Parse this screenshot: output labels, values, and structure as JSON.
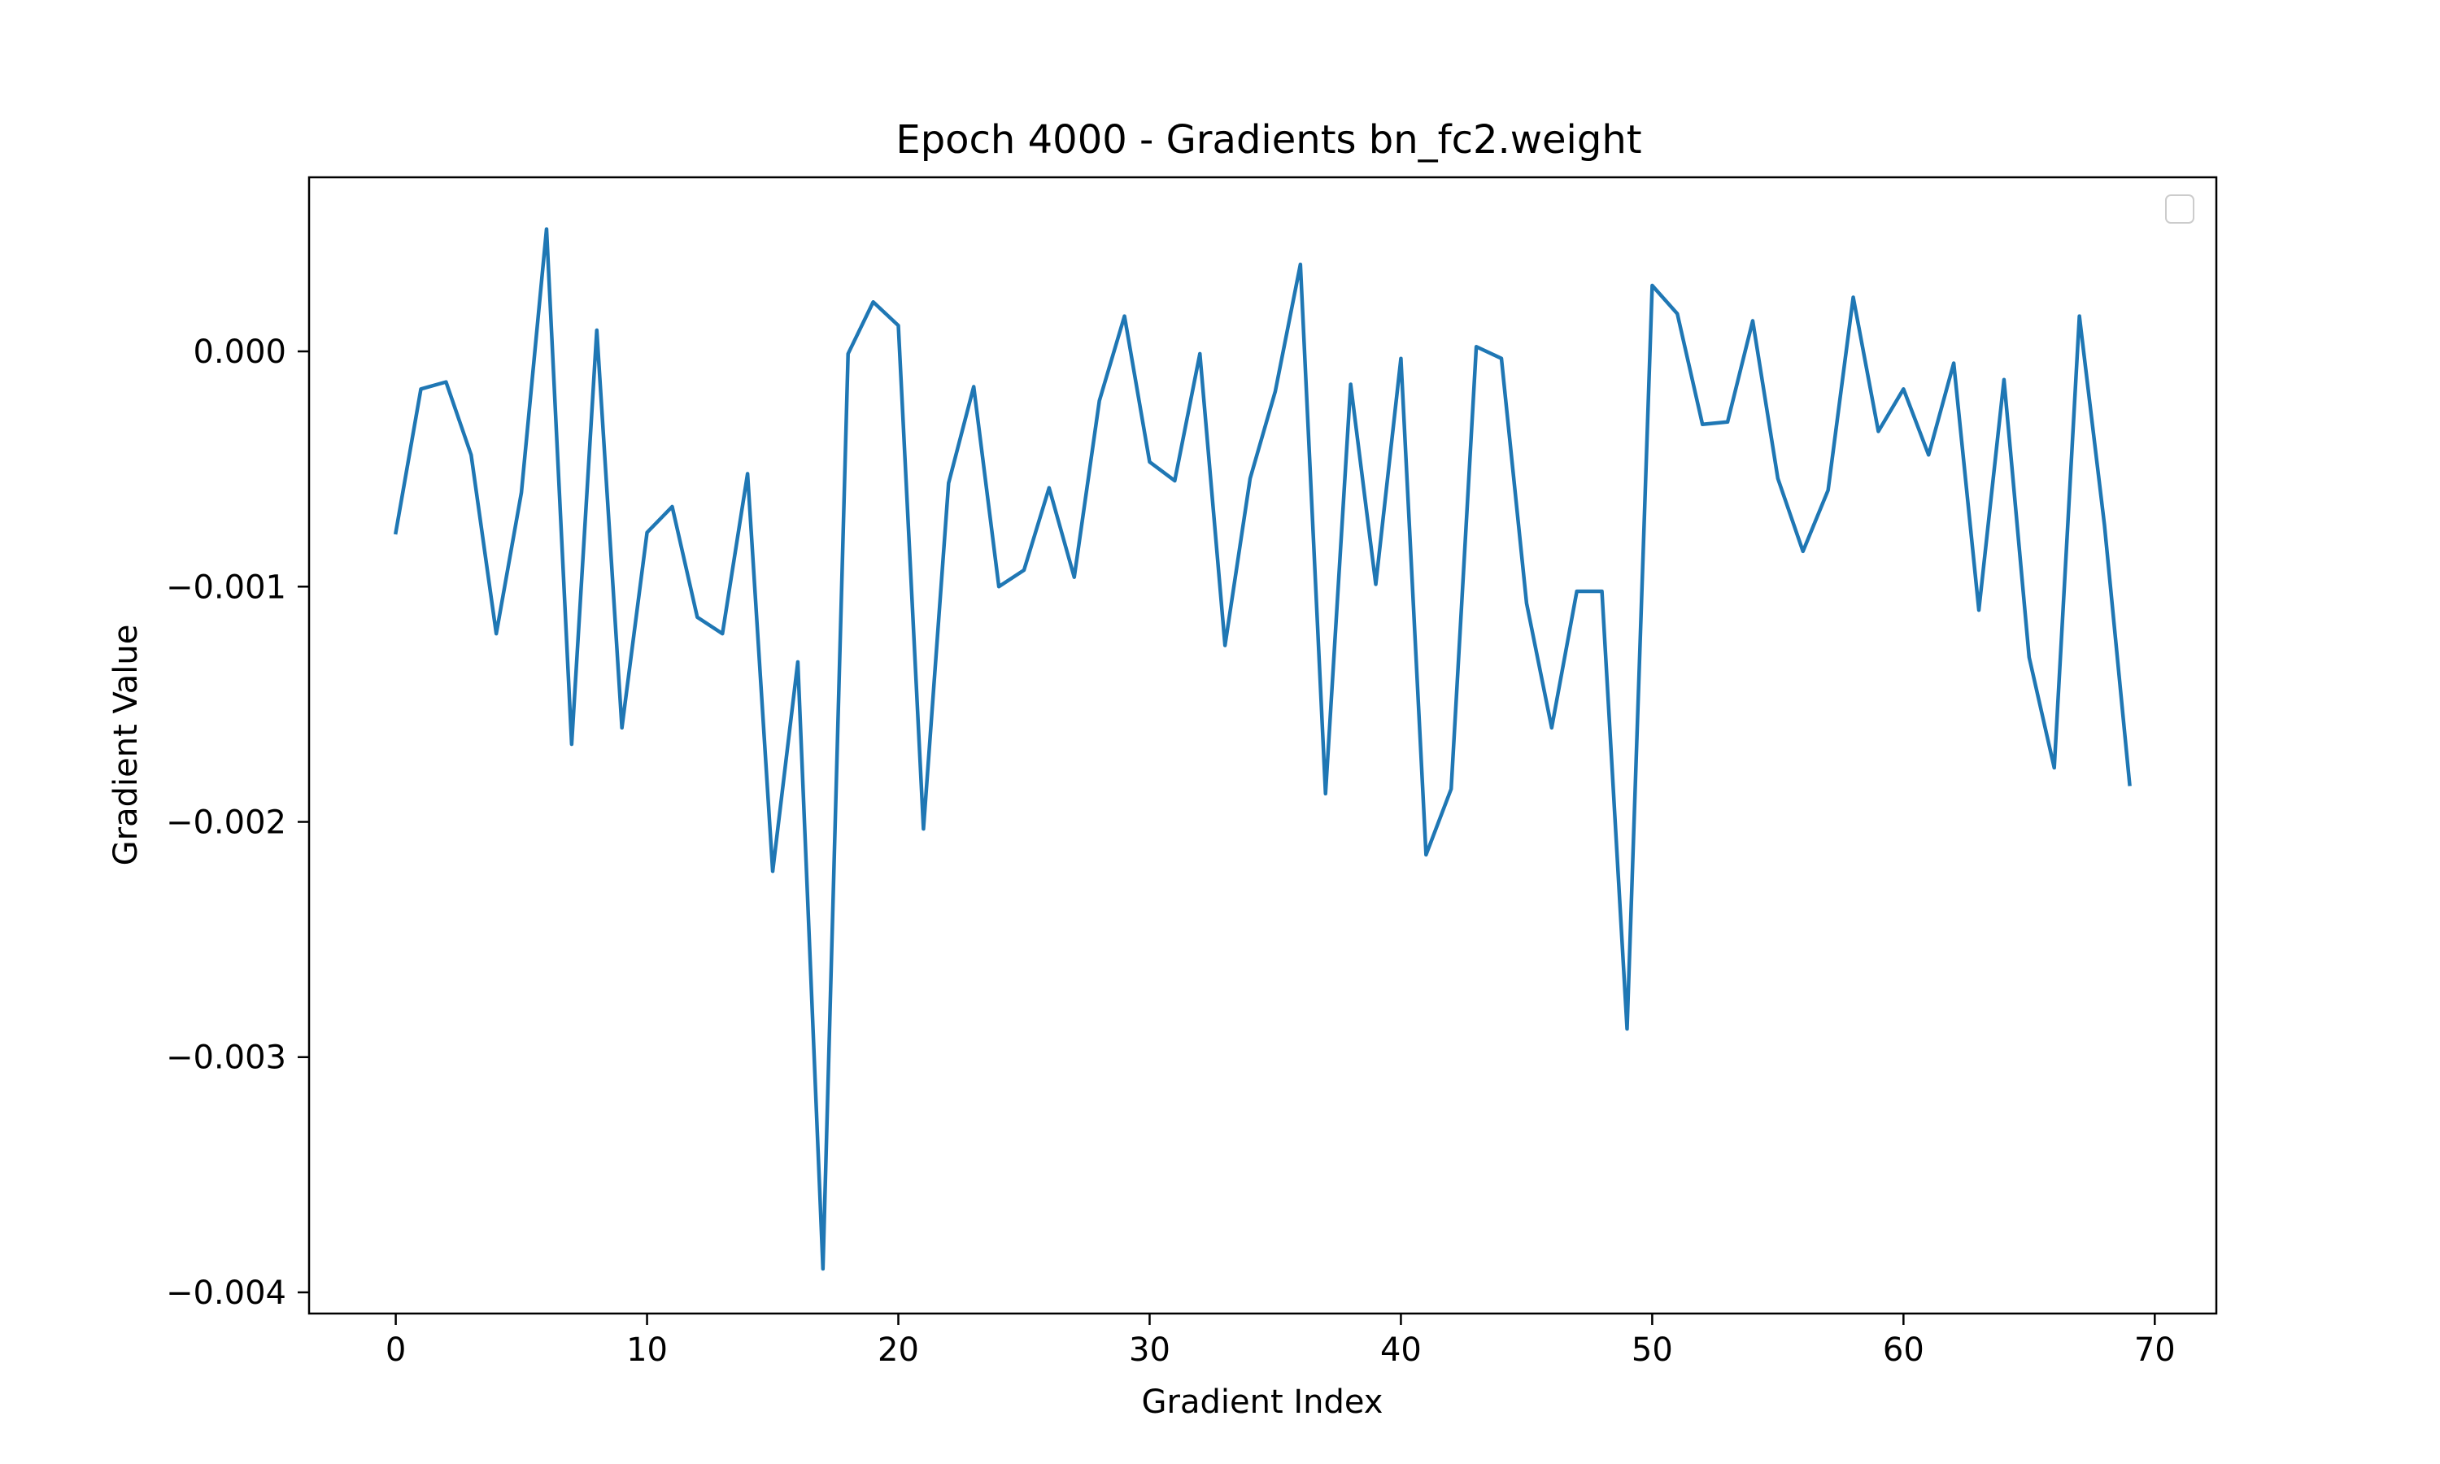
{
  "chart_data": {
    "type": "line",
    "title": "Epoch 4000 - Gradients bn_fc2.weight",
    "xlabel": "Gradient Index",
    "ylabel": "Gradient Value",
    "xlim": [
      -3.45,
      72.45
    ],
    "ylim": [
      -0.00409,
      0.00074
    ],
    "x_ticks": [
      0,
      10,
      20,
      30,
      40,
      50,
      60,
      70
    ],
    "x_tick_labels": [
      "0",
      "10",
      "20",
      "30",
      "40",
      "50",
      "60",
      "70"
    ],
    "y_ticks": [
      0.0,
      -0.001,
      -0.002,
      -0.003,
      -0.004
    ],
    "y_tick_labels": [
      "0.000",
      "−0.001",
      "−0.002",
      "−0.003",
      "−0.004"
    ],
    "grid": false,
    "legend": {
      "placement": "top-right",
      "entries": []
    },
    "colors": {
      "line": "#1f77b4",
      "axes": "#000000",
      "background": "#ffffff"
    },
    "series": [
      {
        "x": [
          0,
          1,
          2,
          3,
          4,
          5,
          6,
          7,
          8,
          9,
          10,
          11,
          12,
          13,
          14,
          15,
          16,
          17,
          18,
          19,
          20,
          21,
          22,
          23,
          24,
          25,
          26,
          27,
          28,
          29,
          30,
          31,
          32,
          33,
          34,
          35,
          36,
          37,
          38,
          39,
          40,
          41,
          42,
          43,
          44,
          45,
          46,
          47,
          48,
          49,
          50,
          51,
          52,
          53,
          54,
          55,
          56,
          57,
          58,
          59,
          60,
          61,
          62,
          63,
          64,
          65,
          66,
          67,
          68,
          69
        ],
        "values": [
          -0.00077,
          -0.00016,
          -0.00013,
          -0.00044,
          -0.0012,
          -0.0006,
          0.00052,
          -0.00167,
          9e-05,
          -0.0016,
          -0.00077,
          -0.00066,
          -0.00113,
          -0.0012,
          -0.00052,
          -0.00221,
          -0.00132,
          -0.0039,
          -1e-05,
          0.00021,
          0.00011,
          -0.00203,
          -0.00056,
          -0.00015,
          -0.001,
          -0.00093,
          -0.00058,
          -0.00096,
          -0.00021,
          0.00015,
          -0.00047,
          -0.00055,
          -1e-05,
          -0.00125,
          -0.00054,
          -0.00017,
          0.00037,
          -0.00188,
          -0.00014,
          -0.00099,
          -3e-05,
          -0.00214,
          -0.00186,
          2e-05,
          -3e-05,
          -0.00107,
          -0.0016,
          -0.00102,
          -0.00102,
          -0.00288,
          0.00028,
          0.00016,
          -0.00031,
          -0.0003,
          0.00013,
          -0.00054,
          -0.00085,
          -0.00059,
          0.00023,
          -0.00034,
          -0.00016,
          -0.00044,
          -5e-05,
          -0.0011,
          -0.00012,
          -0.0013,
          -0.00177,
          0.00015,
          -0.00074,
          -0.00184
        ]
      }
    ]
  }
}
